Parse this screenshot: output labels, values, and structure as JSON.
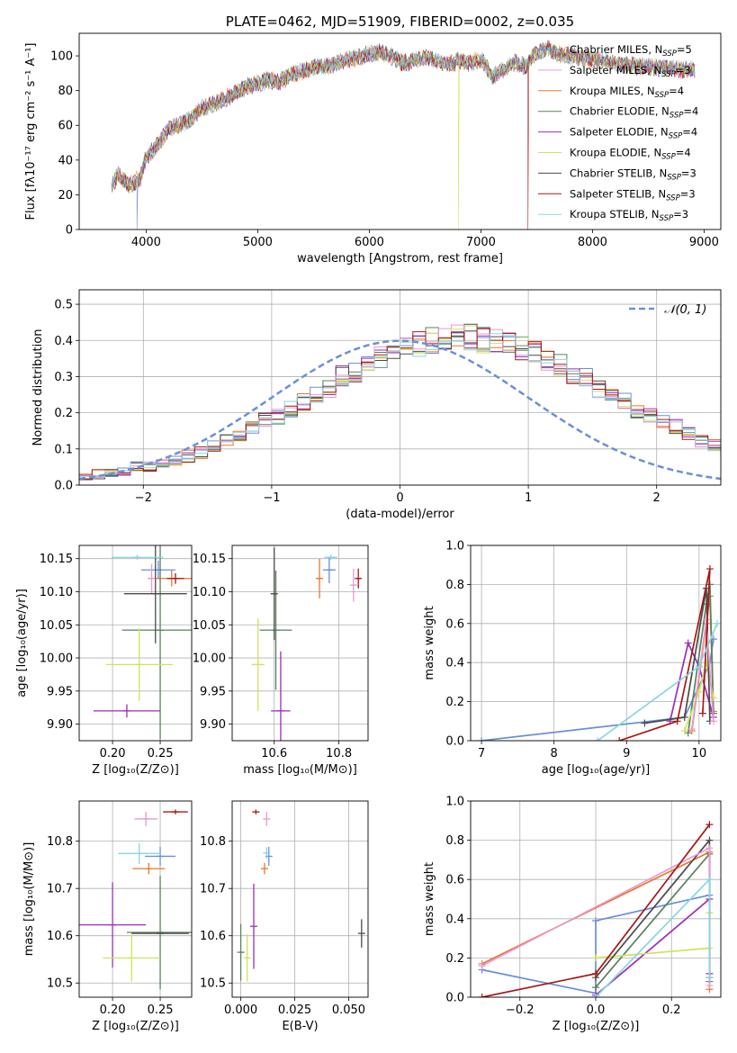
{
  "title": "PLATE=0462, MJD=51909, FIBERID=0002, z=0.035",
  "colors": [
    "#6a8fd8",
    "#e8782d",
    "#58825e",
    "#9a2fb8",
    "#cfe35a",
    "#4b4b4b",
    "#e89ad2",
    "#a51818",
    "#88d6e0"
  ],
  "chart_data": [
    {
      "id": "spectrum",
      "type": "line",
      "xlabel": "wavelength [Angstrom, rest frame]",
      "ylabel": "Flux [fλ10⁻¹⁷ erg cm⁻² s⁻¹ A⁻¹]",
      "xlim": [
        3400,
        9150
      ],
      "ylim": [
        0,
        113
      ],
      "xticks": [
        4000,
        5000,
        6000,
        7000,
        8000,
        9000
      ],
      "yticks": [
        0,
        20,
        40,
        60,
        80,
        100
      ],
      "legend_position": "upper right",
      "envelope": {
        "x": [
          3690,
          3750,
          3850,
          3950,
          4000,
          4100,
          4200,
          4300,
          4400,
          4500,
          4600,
          4700,
          4800,
          4900,
          5000,
          5100,
          5200,
          5300,
          5400,
          5500,
          5600,
          5700,
          5800,
          5900,
          6000,
          6100,
          6200,
          6300,
          6400,
          6500,
          6600,
          6700,
          6800,
          6900,
          7000,
          7050,
          7100,
          7200,
          7300,
          7400,
          7500,
          7600,
          7700,
          7800,
          7900,
          8000,
          8100,
          8200,
          8300,
          8400,
          8500,
          8600,
          8700,
          8800,
          8900
        ],
        "y": [
          25,
          32,
          25,
          30,
          42,
          48,
          58,
          60,
          64,
          70,
          72,
          75,
          79,
          82,
          84,
          86,
          85,
          89,
          91,
          93,
          94,
          95,
          98,
          99,
          101,
          102,
          100,
          96,
          97,
          99,
          97,
          95,
          97,
          96,
          98,
          94,
          88,
          92,
          96,
          94,
          102,
          104,
          101,
          100,
          99,
          98,
          97,
          96,
          95,
          94,
          94,
          93,
          93,
          92,
          92
        ]
      },
      "dropouts": [
        {
          "series": "Chabrier MILES, N_SSP=5",
          "x": 3920,
          "from": 0,
          "to": 30
        },
        {
          "series": "Kroupa ELODIE, N_SSP=4",
          "x": 6800,
          "from": 0,
          "to": 94
        },
        {
          "series": "Salpeter STELIB, N_SSP=3",
          "x": 7420,
          "from": 0,
          "to": 96
        }
      ],
      "series": [
        {
          "name": "Chabrier MILES, N",
          "sub": "SSP",
          "eq": "=5"
        },
        {
          "name": "Salpeter MILES, N",
          "sub": "SSP",
          "eq": "=3"
        },
        {
          "name": "Kroupa MILES, N",
          "sub": "SSP",
          "eq": "=4"
        },
        {
          "name": "Chabrier ELODIE, N",
          "sub": "SSP",
          "eq": "=4"
        },
        {
          "name": "Salpeter ELODIE, N",
          "sub": "SSP",
          "eq": "=4"
        },
        {
          "name": "Kroupa ELODIE, N",
          "sub": "SSP",
          "eq": "=4"
        },
        {
          "name": "Chabrier STELIB, N",
          "sub": "SSP",
          "eq": "=3"
        },
        {
          "name": "Salpeter STELIB, N",
          "sub": "SSP",
          "eq": "=3"
        },
        {
          "name": "Kroupa STELIB, N",
          "sub": "SSP",
          "eq": "=3"
        }
      ],
      "legend_colors": [
        "#6a8fd8",
        "#e89ad2",
        "#e8782d",
        "#58825e",
        "#9a2fb8",
        "#cfe35a",
        "#4b4b4b",
        "#a51818",
        "#88d6e0"
      ]
    },
    {
      "id": "residuals",
      "type": "histogram",
      "xlabel": "(data-model)/error",
      "ylabel": "Normed distribution",
      "xlim": [
        -2.5,
        2.5
      ],
      "ylim": [
        0,
        0.54
      ],
      "xticks": [
        -2,
        -1,
        0,
        1,
        2
      ],
      "yticks": [
        0.0,
        0.1,
        0.2,
        0.3,
        0.4,
        0.5
      ],
      "legend": "𝒩(0, 1)",
      "bin_width": 0.1,
      "bins_start": -2.5,
      "base_values": [
        0.02,
        0.03,
        0.03,
        0.04,
        0.05,
        0.05,
        0.06,
        0.07,
        0.08,
        0.09,
        0.11,
        0.12,
        0.14,
        0.16,
        0.18,
        0.19,
        0.21,
        0.23,
        0.25,
        0.27,
        0.3,
        0.31,
        0.33,
        0.35,
        0.37,
        0.38,
        0.39,
        0.4,
        0.4,
        0.41,
        0.41,
        0.4,
        0.4,
        0.39,
        0.38,
        0.37,
        0.35,
        0.33,
        0.31,
        0.3,
        0.27,
        0.25,
        0.23,
        0.21,
        0.19,
        0.18,
        0.16,
        0.14,
        0.12,
        0.11,
        0.09,
        0.08,
        0.07,
        0.06,
        0.05,
        0.05,
        0.04,
        0.03,
        0.03,
        0.02
      ]
    },
    {
      "id": "age_vs_Z",
      "type": "errorbar",
      "xlabel": "Z [log₁₀(Z/Z⊙)]",
      "ylabel": "age  [log₁₀(age/yr)]",
      "xlim": [
        0.165,
        0.283
      ],
      "ylim": [
        9.875,
        10.17
      ],
      "xticks": [
        0.2,
        0.25
      ],
      "yticks": [
        9.9,
        9.95,
        10.0,
        10.05,
        10.1,
        10.15
      ],
      "points": [
        {
          "c": 0,
          "x": 0.248,
          "y": 10.133,
          "xe": 0.018,
          "ye": 0.014
        },
        {
          "c": 1,
          "x": 0.262,
          "y": 10.12,
          "xe": 0.025,
          "ye": 0.012
        },
        {
          "c": 2,
          "x": 0.25,
          "y": 10.042,
          "xe": 0.04,
          "ye": 0.165
        },
        {
          "c": 3,
          "x": 0.215,
          "y": 9.92,
          "xe": 0.035,
          "ye": 0.01
        },
        {
          "c": 4,
          "x": 0.228,
          "y": 9.99,
          "xe": 0.035,
          "ye": 0.055
        },
        {
          "c": 5,
          "x": 0.245,
          "y": 10.097,
          "xe": 0.033,
          "ye": 0.075
        },
        {
          "c": 6,
          "x": 0.241,
          "y": 10.12,
          "xe": 0.002,
          "ye": 0.022
        },
        {
          "c": 7,
          "x": 0.266,
          "y": 10.12,
          "xe": 0.009,
          "ye": 0.008
        },
        {
          "c": 8,
          "x": 0.226,
          "y": 10.152,
          "xe": 0.027,
          "ye": 0.004
        }
      ]
    },
    {
      "id": "age_vs_mass",
      "type": "errorbar",
      "xlabel": "mass [log₁₀(M/M⊙)]",
      "xlim": [
        10.47,
        10.89
      ],
      "ylim": [
        9.875,
        10.17
      ],
      "xticks": [
        10.6,
        10.8
      ],
      "yticks": [
        9.9,
        9.95,
        10.0,
        10.05,
        10.1,
        10.15
      ],
      "points": [
        {
          "c": 0,
          "x": 10.77,
          "y": 10.133,
          "xe": 0.02,
          "ye": 0.02
        },
        {
          "c": 1,
          "x": 10.74,
          "y": 10.12,
          "xe": 0.01,
          "ye": 0.03
        },
        {
          "c": 2,
          "x": 10.605,
          "y": 10.042,
          "xe": 0.05,
          "ye": 0.09
        },
        {
          "c": 3,
          "x": 10.62,
          "y": 9.92,
          "xe": 0.03,
          "ye": 0.09
        },
        {
          "c": 4,
          "x": 10.55,
          "y": 9.99,
          "xe": 0.02,
          "ye": 0.07
        },
        {
          "c": 5,
          "x": 10.6,
          "y": 10.097,
          "xe": 0.01,
          "ye": 0.07
        },
        {
          "c": 6,
          "x": 10.845,
          "y": 10.11,
          "xe": 0.003,
          "ye": 0.025
        },
        {
          "c": 7,
          "x": 10.86,
          "y": 10.12,
          "xe": 0.005,
          "ye": 0.015
        },
        {
          "c": 8,
          "x": 10.775,
          "y": 10.152,
          "xe": 0.02,
          "ye": 0.004
        }
      ]
    },
    {
      "id": "weights_vs_age",
      "type": "line",
      "xlabel": "age  [log₁₀(age/yr)]",
      "ylabel": "mass weight",
      "xlim": [
        6.85,
        10.3
      ],
      "ylim": [
        0,
        1.0
      ],
      "xticks": [
        7,
        8,
        9,
        10
      ],
      "yticks": [
        0.0,
        0.2,
        0.4,
        0.6,
        0.8,
        1.0
      ],
      "series": [
        {
          "c": 0,
          "x": [
            7.0,
            9.8,
            10.15,
            10.2
          ],
          "y": [
            0.0,
            0.12,
            0.4,
            0.52
          ]
        },
        {
          "c": 1,
          "x": [
            9.9,
            10.1,
            10.15,
            10.2
          ],
          "y": [
            0.05,
            0.6,
            0.74,
            0.15
          ]
        },
        {
          "c": 2,
          "x": [
            9.85,
            10.1,
            10.15,
            10.2
          ],
          "y": [
            0.04,
            0.7,
            0.8,
            0.14
          ]
        },
        {
          "c": 3,
          "x": [
            9.6,
            9.85,
            10.0,
            10.2
          ],
          "y": [
            0.1,
            0.5,
            0.38,
            0.12
          ]
        },
        {
          "c": 4,
          "x": [
            9.8,
            10.0,
            10.1,
            10.2
          ],
          "y": [
            0.05,
            0.25,
            0.4,
            0.22
          ]
        },
        {
          "c": 5,
          "x": [
            9.25,
            9.8,
            10.1,
            10.15
          ],
          "y": [
            0.09,
            0.12,
            0.78,
            0.1
          ]
        },
        {
          "c": 6,
          "x": [
            9.9,
            10.1,
            10.2
          ],
          "y": [
            0.06,
            0.62,
            0.1
          ]
        },
        {
          "c": 7,
          "x": [
            8.9,
            9.7,
            10.15,
            10.05
          ],
          "y": [
            0.0,
            0.1,
            0.88,
            0.14
          ]
        },
        {
          "c": 8,
          "x": [
            8.6,
            10.0,
            10.25
          ],
          "y": [
            0.0,
            0.38,
            0.6
          ]
        }
      ]
    },
    {
      "id": "mass_vs_Z",
      "type": "errorbar",
      "xlabel": "Z [log₁₀(Z/Z⊙)]",
      "ylabel": "mass [log₁₀(M/M⊙)]",
      "xlim": [
        0.165,
        0.283
      ],
      "ylim": [
        10.47,
        10.885
      ],
      "xticks": [
        0.2,
        0.25
      ],
      "yticks": [
        10.5,
        10.6,
        10.7,
        10.8
      ],
      "points": [
        {
          "c": 0,
          "x": 0.25,
          "y": 10.768,
          "xe": 0.016,
          "ye": 0.02
        },
        {
          "c": 1,
          "x": 0.238,
          "y": 10.742,
          "xe": 0.017,
          "ye": 0.012
        },
        {
          "c": 2,
          "x": 0.25,
          "y": 10.607,
          "xe": 0.035,
          "ye": 0.12
        },
        {
          "c": 3,
          "x": 0.2,
          "y": 10.623,
          "xe": 0.035,
          "ye": 0.09
        },
        {
          "c": 4,
          "x": 0.22,
          "y": 10.553,
          "xe": 0.03,
          "ye": 0.05
        },
        {
          "c": 5,
          "x": 0.25,
          "y": 10.605,
          "xe": 0.03,
          "ye": 0.0
        },
        {
          "c": 6,
          "x": 0.235,
          "y": 10.847,
          "xe": 0.012,
          "ye": 0.015
        },
        {
          "c": 7,
          "x": 0.266,
          "y": 10.862,
          "xe": 0.013,
          "ye": 0.005
        },
        {
          "c": 8,
          "x": 0.228,
          "y": 10.774,
          "xe": 0.022,
          "ye": 0.022
        }
      ]
    },
    {
      "id": "mass_vs_EBV",
      "type": "errorbar",
      "xlabel": "E(B-V)",
      "xlim": [
        -0.004,
        0.059
      ],
      "ylim": [
        10.47,
        10.885
      ],
      "xticks": [
        0.0,
        0.025,
        0.05
      ],
      "yticks": [
        10.5,
        10.6,
        10.7,
        10.8
      ],
      "points": [
        {
          "c": 0,
          "x": 0.013,
          "y": 10.768,
          "xe": 0.0,
          "ye": 0.02
        },
        {
          "c": 1,
          "x": 0.011,
          "y": 10.742,
          "xe": 0.0,
          "ye": 0.012
        },
        {
          "c": 2,
          "x": 0.0,
          "y": 10.565,
          "xe": 0.0,
          "ye": 0.06
        },
        {
          "c": 3,
          "x": 0.006,
          "y": 10.62,
          "xe": 0.0,
          "ye": 0.09
        },
        {
          "c": 4,
          "x": 0.003,
          "y": 10.553,
          "xe": 0.0,
          "ye": 0.05
        },
        {
          "c": 5,
          "x": 0.056,
          "y": 10.605,
          "xe": 0.0,
          "ye": 0.03
        },
        {
          "c": 6,
          "x": 0.012,
          "y": 10.847,
          "xe": 0.0,
          "ye": 0.015
        },
        {
          "c": 7,
          "x": 0.007,
          "y": 10.862,
          "xe": 0.0,
          "ye": 0.005
        },
        {
          "c": 8,
          "x": 0.012,
          "y": 10.775,
          "xe": 0.0,
          "ye": 0.012
        }
      ]
    },
    {
      "id": "weights_vs_Z",
      "type": "line",
      "xlabel": "Z [log₁₀(Z/Z⊙)]",
      "ylabel": "mass weight",
      "xlim": [
        -0.33,
        0.33
      ],
      "ylim": [
        0,
        1.0
      ],
      "xticks": [
        -0.2,
        0.0,
        0.2
      ],
      "xtick_labels": [
        "−0.2",
        "0.0",
        "0.2"
      ],
      "yticks": [
        0.0,
        0.2,
        0.4,
        0.6,
        0.8,
        1.0
      ],
      "series": [
        {
          "c": 0,
          "x": [
            -0.3,
            0.0,
            0.0,
            0.3
          ],
          "y": [
            0.14,
            0.02,
            0.39,
            0.52
          ]
        },
        {
          "c": 1,
          "x": [
            -0.3,
            0.3,
            0.3
          ],
          "y": [
            0.17,
            0.74,
            0.04
          ]
        },
        {
          "c": 2,
          "x": [
            0.0,
            0.3,
            0.3
          ],
          "y": [
            0.05,
            0.73,
            0.08
          ]
        },
        {
          "c": 3,
          "x": [
            0.0,
            0.3,
            0.3
          ],
          "y": [
            0.01,
            0.5,
            0.12
          ]
        },
        {
          "c": 4,
          "x": [
            0.0,
            0.3,
            0.3
          ],
          "y": [
            0.2,
            0.25,
            0.43
          ]
        },
        {
          "c": 5,
          "x": [
            0.0,
            0.3,
            0.3
          ],
          "y": [
            0.1,
            0.8,
            0.1
          ]
        },
        {
          "c": 6,
          "x": [
            -0.3,
            0.3,
            0.3
          ],
          "y": [
            0.16,
            0.76,
            0.06
          ]
        },
        {
          "c": 7,
          "x": [
            -0.3,
            0.0,
            0.3
          ],
          "y": [
            0.0,
            0.12,
            0.88
          ]
        },
        {
          "c": 8,
          "x": [
            0.0,
            0.3,
            0.3
          ],
          "y": [
            0.0,
            0.6,
            0.1
          ]
        }
      ]
    }
  ]
}
